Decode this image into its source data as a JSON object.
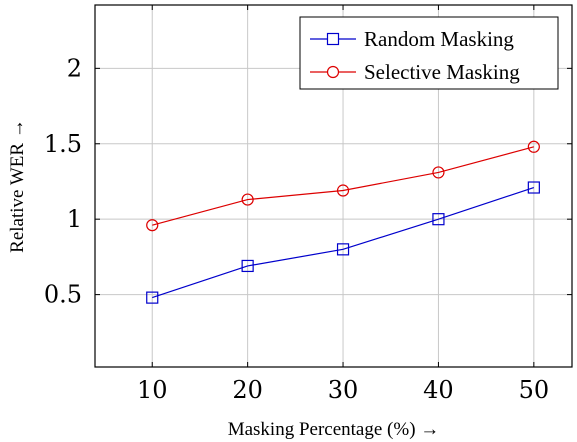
{
  "chart_data": {
    "type": "line",
    "title": "",
    "xlabel": "Masking Percentage (%) →",
    "ylabel": "Relative WER →",
    "x": [
      10,
      20,
      30,
      40,
      50
    ],
    "x_ticks": [
      "10",
      "20",
      "30",
      "40",
      "50"
    ],
    "y_ticks": [
      "0.5",
      "1",
      "1.5",
      "2"
    ],
    "xlim": [
      4,
      54
    ],
    "ylim": [
      0.02,
      2.42
    ],
    "grid": true,
    "legend_position": "top-right",
    "series": [
      {
        "name": "Random Masking",
        "values": [
          0.48,
          0.69,
          0.8,
          1.0,
          1.21
        ],
        "color": "#0000cc",
        "marker": "square"
      },
      {
        "name": "Selective Masking",
        "values": [
          0.96,
          1.13,
          1.19,
          1.31,
          1.48
        ],
        "color": "#dd0000",
        "marker": "circle"
      }
    ]
  }
}
